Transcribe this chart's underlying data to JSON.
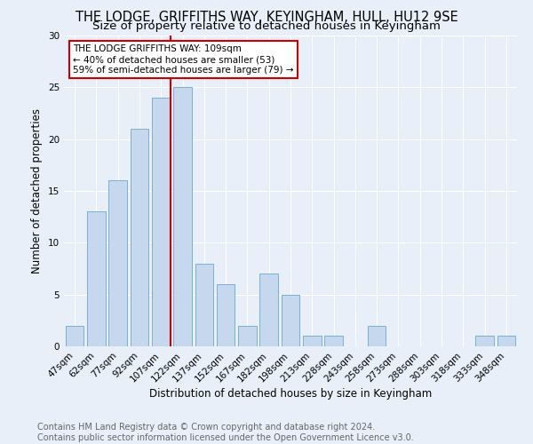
{
  "title": "THE LODGE, GRIFFITHS WAY, KEYINGHAM, HULL, HU12 9SE",
  "subtitle": "Size of property relative to detached houses in Keyingham",
  "xlabel": "Distribution of detached houses by size in Keyingham",
  "ylabel": "Number of detached properties",
  "bar_color": "#c5d8ed",
  "bar_edge_color": "#7aafd4",
  "background_color": "#e8eff8",
  "grid_color": "#ffffff",
  "categories": [
    "47sqm",
    "62sqm",
    "77sqm",
    "92sqm",
    "107sqm",
    "122sqm",
    "137sqm",
    "152sqm",
    "167sqm",
    "182sqm",
    "198sqm",
    "213sqm",
    "228sqm",
    "243sqm",
    "258sqm",
    "273sqm",
    "288sqm",
    "303sqm",
    "318sqm",
    "333sqm",
    "348sqm"
  ],
  "values": [
    2,
    13,
    16,
    21,
    24,
    25,
    8,
    6,
    2,
    7,
    5,
    1,
    1,
    0,
    2,
    0,
    0,
    0,
    0,
    1,
    1
  ],
  "ylim": [
    0,
    30
  ],
  "yticks": [
    0,
    5,
    10,
    15,
    20,
    25,
    30
  ],
  "marker_bar_index": 4,
  "marker_label_line1": "THE LODGE GRIFFITHS WAY: 109sqm",
  "marker_label_line2": "← 40% of detached houses are smaller (53)",
  "marker_label_line3": "59% of semi-detached houses are larger (79) →",
  "annotation_color": "#cc0000",
  "footer_line1": "Contains HM Land Registry data © Crown copyright and database right 2024.",
  "footer_line2": "Contains public sector information licensed under the Open Government Licence v3.0.",
  "title_fontsize": 10.5,
  "subtitle_fontsize": 9.5,
  "axis_label_fontsize": 8.5,
  "tick_fontsize": 7.5,
  "annotation_fontsize": 7.5,
  "footer_fontsize": 7.0
}
